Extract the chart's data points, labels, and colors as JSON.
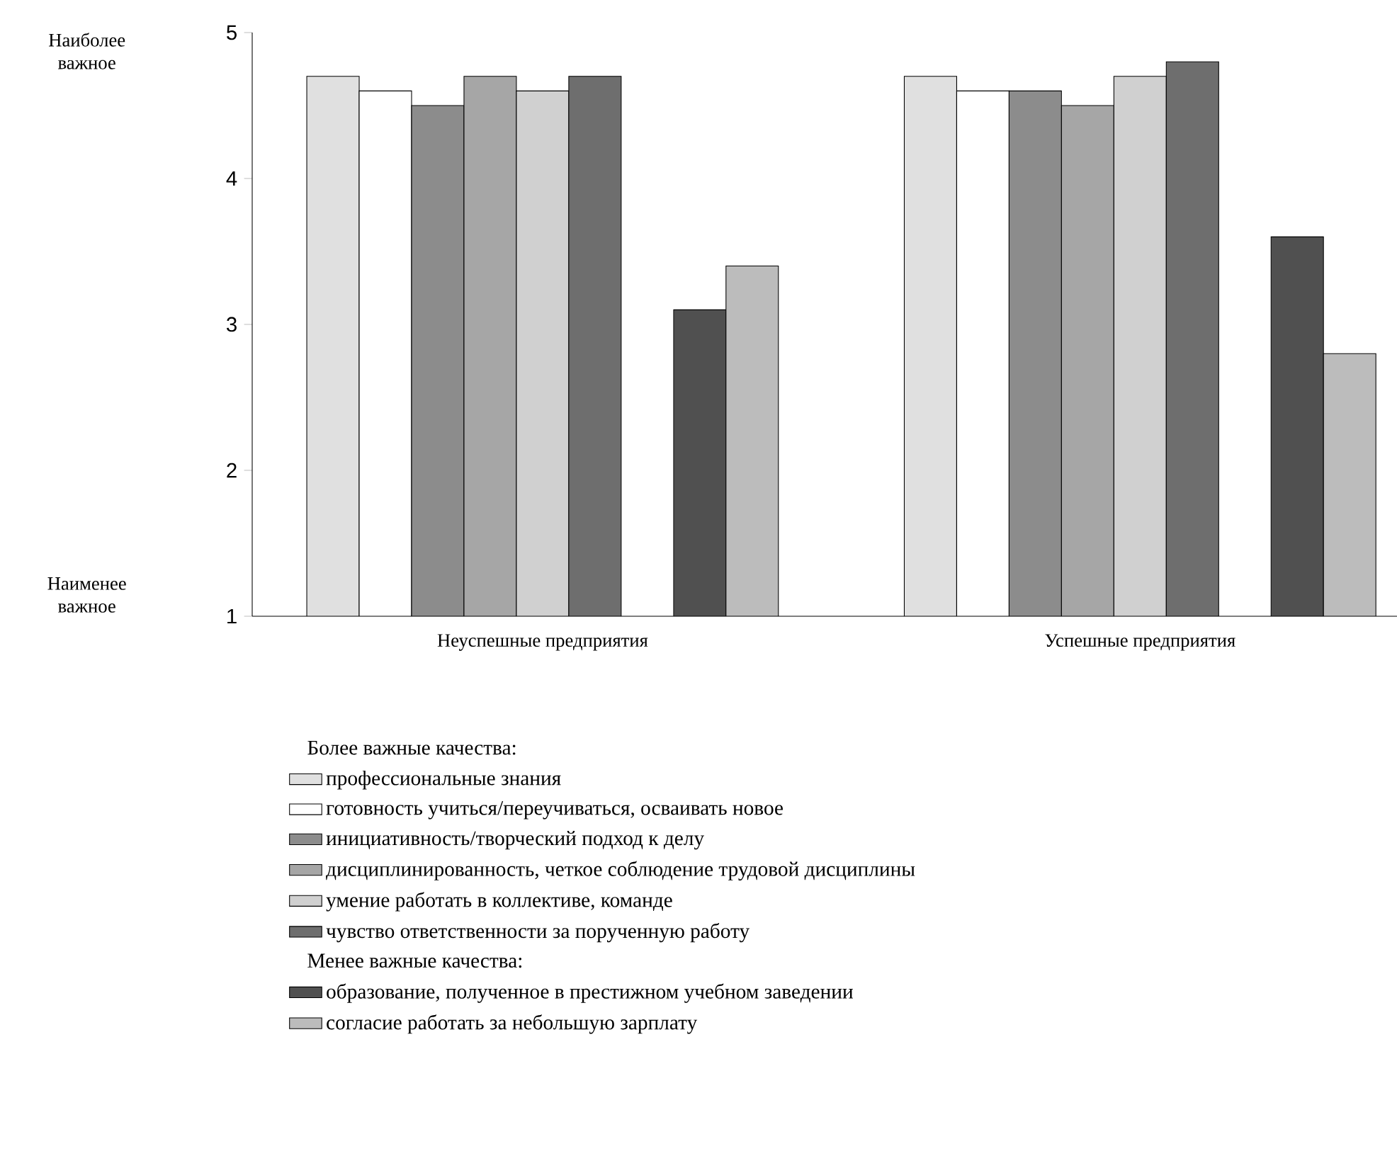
{
  "chart_data": {
    "type": "bar",
    "categories": [
      "Неуспешные предприятия",
      "Успешные предприятия"
    ],
    "series": [
      {
        "name": "профессиональные знания",
        "color": "#e0e0e0",
        "values": [
          4.7,
          4.7
        ]
      },
      {
        "name": "готовность учиться/переучиваться, осваивать новое",
        "color": "#ffffff",
        "values": [
          4.6,
          4.6
        ]
      },
      {
        "name": "инициативность/творческий подход к делу",
        "color": "#8c8c8c",
        "values": [
          4.5,
          4.6
        ]
      },
      {
        "name": "дисциплинированность, четкое соблюдение трудовой дисциплины",
        "color": "#a6a6a6",
        "values": [
          4.7,
          4.5
        ]
      },
      {
        "name": "умение работать в коллективе, команде",
        "color": "#d0d0d0",
        "values": [
          4.6,
          4.7
        ]
      },
      {
        "name": "чувство ответственности за порученную работу",
        "color": "#6e6e6e",
        "values": [
          4.7,
          4.8
        ]
      },
      {
        "name": "образование, полученное в престижном учебном заведении",
        "color": "#505050",
        "values": [
          3.1,
          3.6
        ]
      },
      {
        "name": "согласие работать за небольшую зарплату",
        "color": "#bcbcbc",
        "values": [
          3.4,
          2.8
        ]
      }
    ],
    "ylim": [
      1,
      5
    ],
    "yticks": [
      1,
      2,
      3,
      4,
      5
    ],
    "grid": false,
    "legend": "bottom",
    "annotations": [
      "Более важные качества:",
      "Менее важные качества:",
      "Наиболее важное",
      "Наименее важное"
    ]
  }
}
